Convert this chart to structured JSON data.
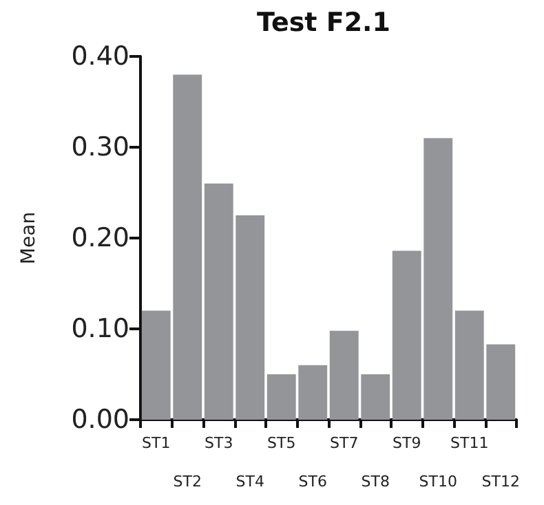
{
  "chart_data": {
    "type": "bar",
    "title": "Test F2.1",
    "ylabel": "Mean",
    "categories": [
      "ST1",
      "ST2",
      "ST3",
      "ST4",
      "ST5",
      "ST6",
      "ST7",
      "ST8",
      "ST9",
      "ST10",
      "ST11",
      "ST12"
    ],
    "values": [
      0.12,
      0.38,
      0.26,
      0.225,
      0.05,
      0.06,
      0.098,
      0.05,
      0.186,
      0.31,
      0.12,
      0.083
    ],
    "color": "#939598",
    "ylim": [
      0,
      0.4
    ],
    "yticks": [
      {
        "value": 0,
        "label": "0.00"
      },
      {
        "value": 0.1,
        "label": "0.10"
      },
      {
        "value": 0.2,
        "label": "0.20"
      },
      {
        "value": 0.3,
        "label": "0.30"
      },
      {
        "value": 0.4,
        "label": "0.40"
      }
    ],
    "grid": false
  }
}
